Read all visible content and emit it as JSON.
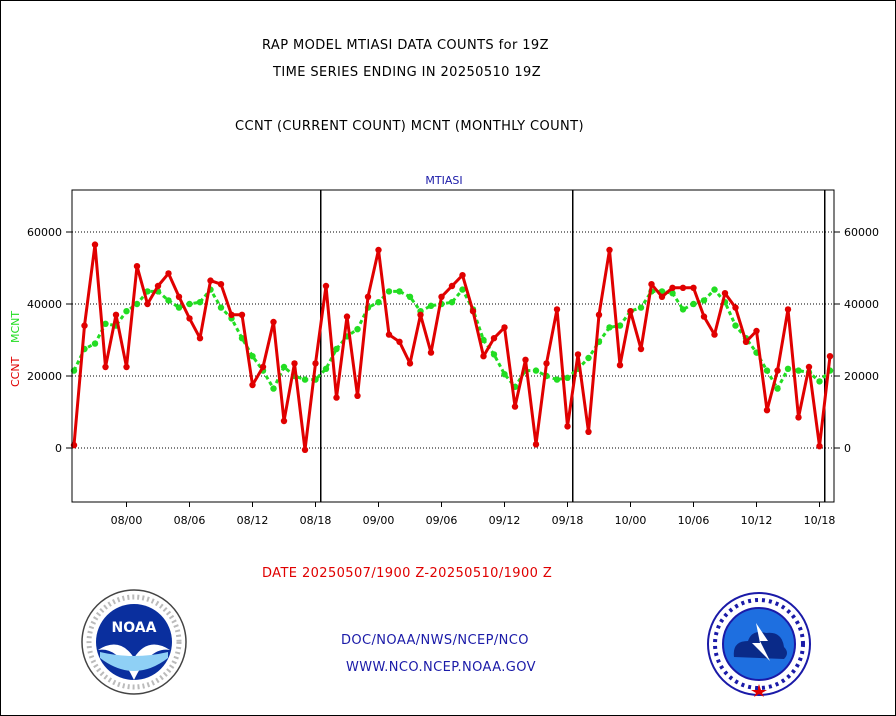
{
  "header": {
    "title_line1": "RAP MODEL MTIASI DATA COUNTS for 19Z",
    "title_line2": "TIME SERIES ENDING IN 20250510 19Z",
    "title_line3": "CCNT (CURRENT COUNT) MCNT (MONTHLY COUNT)"
  },
  "footer": {
    "date_range": "DATE 20250507/1900 Z-20250510/1900 Z",
    "org_path": "DOC/NOAA/NWS/NCEP/NCO",
    "url": "WWW.NCO.NCEP.NOAA.GOV"
  },
  "logos": {
    "left": "noaa-logo",
    "left_text": "NOAA",
    "left_ring": "NATIONAL OCEANIC AND ATMOSPHERIC ADMINISTRATION · U.S. DEPARTMENT OF COMMERCE",
    "right": "nws-logo",
    "right_ring": "NATIONAL WEATHER SERVICE"
  },
  "colors": {
    "ccnt": "#e00000",
    "mcnt": "#22dd22",
    "title": "#1a1aa8"
  },
  "chart_data": {
    "type": "line",
    "title": "MTIASI",
    "ylabel_parts": [
      "CCNT",
      "MCNT"
    ],
    "ylim": [
      -15000,
      72000
    ],
    "yticks": [
      0,
      20000,
      40000,
      60000
    ],
    "ytick_labels": [
      "0",
      "20000",
      "40000",
      "60000"
    ],
    "xlim": [
      0,
      73
    ],
    "xticks": [
      {
        "x": 5,
        "label": "08/00"
      },
      {
        "x": 11,
        "label": "08/06"
      },
      {
        "x": 17,
        "label": "08/12"
      },
      {
        "x": 23,
        "label": "08/18"
      },
      {
        "x": 29,
        "label": "09/00"
      },
      {
        "x": 35,
        "label": "09/06"
      },
      {
        "x": 41,
        "label": "09/12"
      },
      {
        "x": 47,
        "label": "09/18"
      },
      {
        "x": 53,
        "label": "10/00"
      },
      {
        "x": 59,
        "label": "10/06"
      },
      {
        "x": 65,
        "label": "10/12"
      },
      {
        "x": 71,
        "label": "10/18"
      }
    ],
    "day_lines": [
      23.5,
      47.5,
      71.5
    ],
    "grid": "horizontal-dotted",
    "series": [
      {
        "name": "CCNT",
        "values": [
          800,
          34000,
          56500,
          22500,
          37000,
          22500,
          50500,
          40000,
          45000,
          48500,
          42000,
          36000,
          30500,
          46500,
          45500,
          37000,
          37000,
          17500,
          22500,
          35000,
          7500,
          23500,
          -500,
          23500,
          45000,
          14000,
          36500,
          14500,
          42000,
          55000,
          31500,
          29500,
          23500,
          37000,
          26500,
          42000,
          45000,
          48000,
          38000,
          25500,
          30500,
          33500,
          11500,
          24500,
          1000,
          23500,
          38500,
          6000,
          26000,
          4500,
          37000,
          55000,
          23000,
          38000,
          27500,
          45500,
          42000,
          44500,
          44500,
          44500,
          36500,
          31500,
          43000,
          39000,
          29500,
          32500,
          10500,
          21500,
          38500,
          8500,
          22500,
          500,
          25500
        ]
      },
      {
        "name": "MCNT",
        "values": [
          21500,
          27500,
          29000,
          34500,
          34000,
          38000,
          40000,
          43500,
          43500,
          41000,
          39000,
          40000,
          40500,
          44000,
          39000,
          36000,
          30500,
          25500,
          21500,
          16500,
          22500,
          20000,
          19000,
          19000,
          22000,
          27500,
          31000,
          33000,
          39000,
          40500,
          43500,
          43500,
          42000,
          38000,
          39500,
          40000,
          40500,
          44000,
          38500,
          30000,
          26000,
          20500,
          17000,
          21500,
          21500,
          20000,
          19000,
          19500,
          22000,
          25000,
          29500,
          33500,
          34000,
          38000,
          39000,
          43500,
          43500,
          43000,
          38500,
          40000,
          41000,
          44000,
          40500,
          34000,
          30500,
          26500,
          21500,
          16500,
          22000,
          21500,
          21000,
          18500,
          21500
        ]
      }
    ]
  }
}
